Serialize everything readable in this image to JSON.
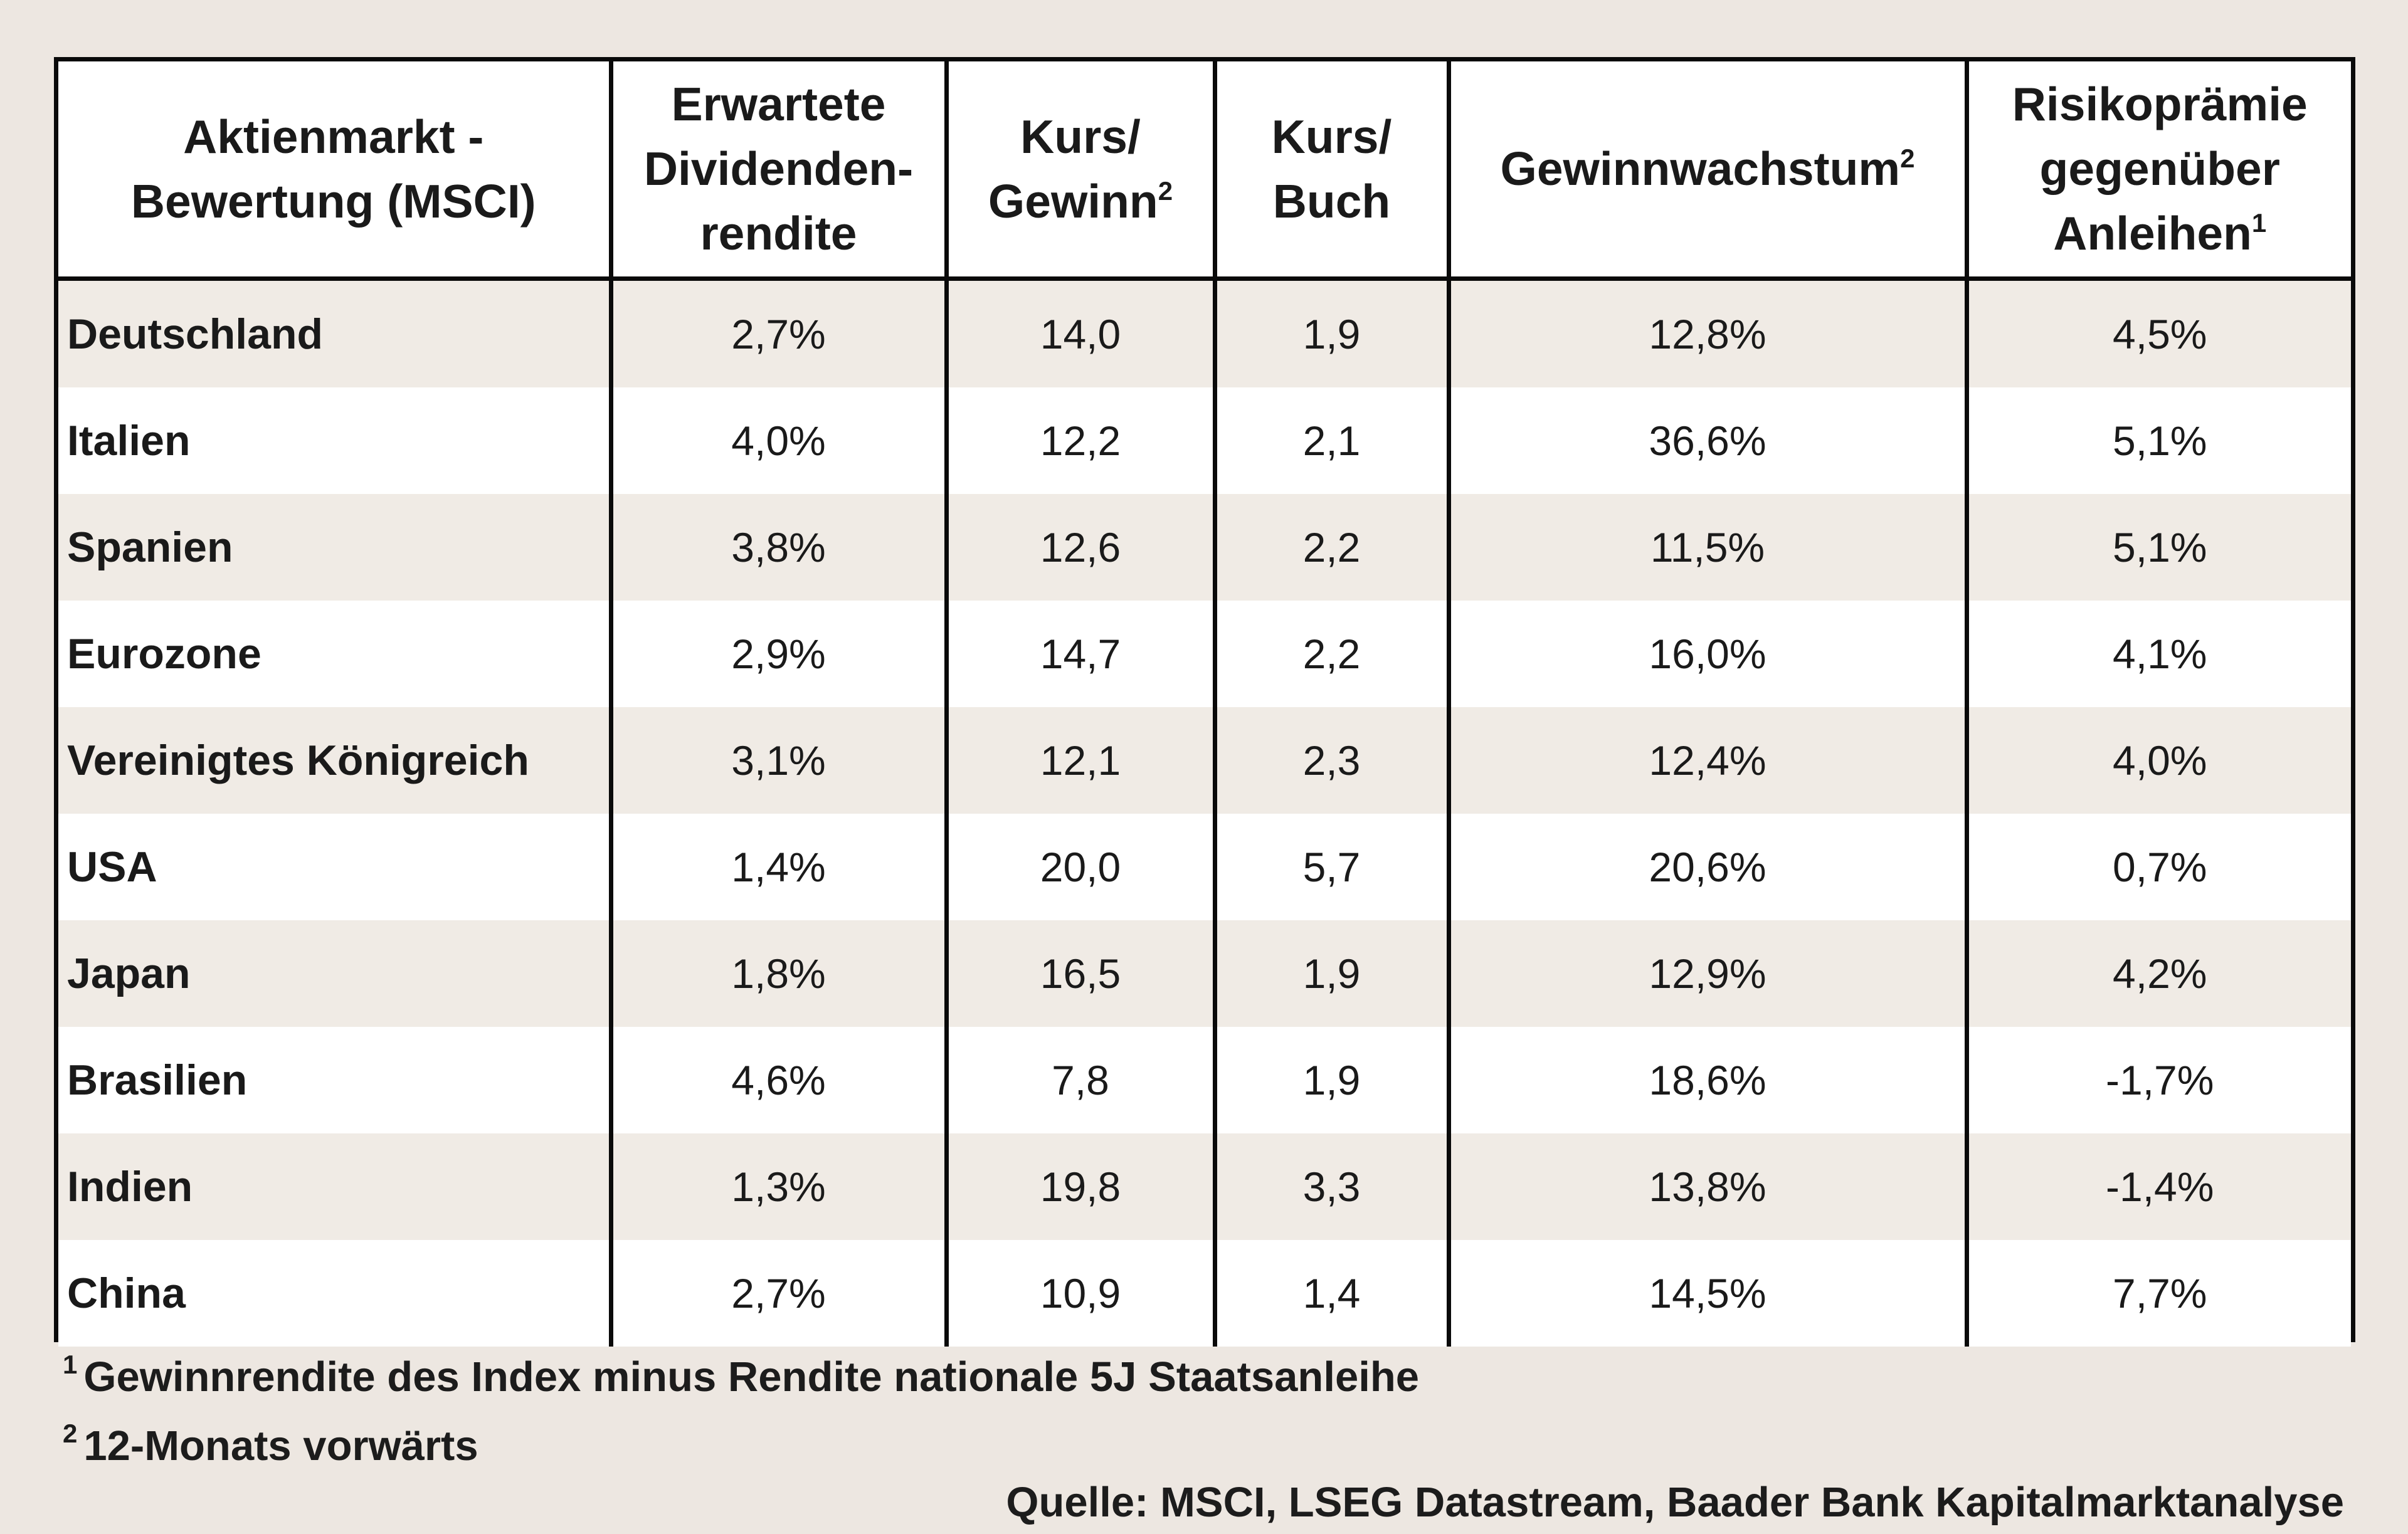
{
  "chart_data": {
    "type": "table",
    "columns": [
      {
        "label": "Aktienmarkt -\nBewertung (MSCI)",
        "sup": ""
      },
      {
        "label": "Erwartete\nDividenden-\nrendite",
        "sup": ""
      },
      {
        "label": "Kurs/\nGewinn",
        "sup": "2"
      },
      {
        "label": "Kurs/\nBuch",
        "sup": ""
      },
      {
        "label": "Gewinnwachstum",
        "sup": "2"
      },
      {
        "label": "Risikoprämie\ngegenüber\nAnleihen",
        "sup": "1"
      }
    ],
    "rows": [
      [
        "Deutschland",
        "2,7%",
        "14,0",
        "1,9",
        "12,8%",
        "4,5%"
      ],
      [
        "Italien",
        "4,0%",
        "12,2",
        "2,1",
        "36,6%",
        "5,1%"
      ],
      [
        "Spanien",
        "3,8%",
        "12,6",
        "2,2",
        "11,5%",
        "5,1%"
      ],
      [
        "Eurozone",
        "2,9%",
        "14,7",
        "2,2",
        "16,0%",
        "4,1%"
      ],
      [
        "Vereinigtes Königreich",
        "3,1%",
        "12,1",
        "2,3",
        "12,4%",
        "4,0%"
      ],
      [
        "USA",
        "1,4%",
        "20,0",
        "5,7",
        "20,6%",
        "0,7%"
      ],
      [
        "Japan",
        "1,8%",
        "16,5",
        "1,9",
        "12,9%",
        "4,2%"
      ],
      [
        "Brasilien",
        "4,6%",
        "7,8",
        "1,9",
        "18,6%",
        "-1,7%"
      ],
      [
        "Indien",
        "1,3%",
        "19,8",
        "3,3",
        "13,8%",
        "-1,4%"
      ],
      [
        "China",
        "2,7%",
        "10,9",
        "1,4",
        "14,5%",
        "7,7%"
      ]
    ]
  },
  "footnotes": [
    {
      "mark": "1",
      "text": "Gewinnrendite des Index minus Rendite nationale 5J Staatsanleihe"
    },
    {
      "mark": "2",
      "text": "12-Monats vorwärts"
    }
  ],
  "source": "Quelle: MSCI, LSEG Datastream, Baader Bank Kapitalmarktanalyse",
  "colors": {
    "border": "#0a0a0a",
    "row_shaded": "#f0ebe5",
    "row_plain": "#ffffff",
    "page_background": "#ede7e1"
  }
}
